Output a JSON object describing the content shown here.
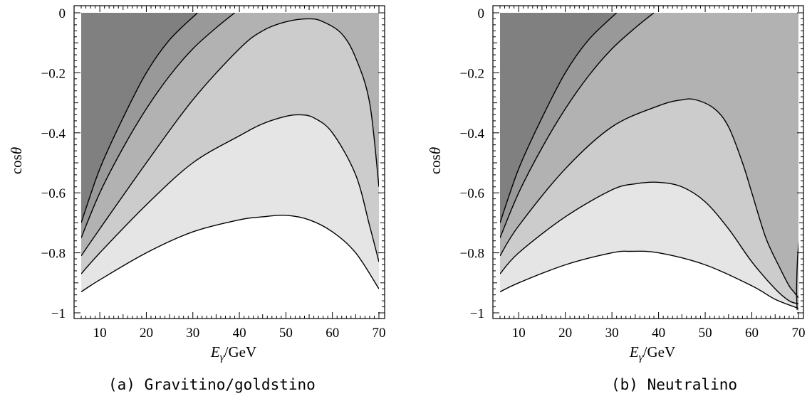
{
  "chart_data": [
    {
      "type": "contour",
      "caption": "(a) Gravitino/goldstino",
      "xlabel": "E",
      "xlabel_sub": "γ",
      "xlabel_unit": "/GeV",
      "ylabel": "cos",
      "ylabel_sym": "θ",
      "xlim": [
        5,
        71
      ],
      "ylim": [
        -1.04,
        0.02
      ],
      "x_ticks": [
        10,
        20,
        30,
        40,
        50,
        60,
        70
      ],
      "y_ticks": [
        0,
        -0.2,
        -0.4,
        -0.6,
        -0.8,
        -1
      ],
      "y_tick_labels": [
        "0",
        "−0.2",
        "−0.4",
        "−0.6",
        "−0.8",
        "−1"
      ],
      "contours": [
        {
          "x": [
            6,
            10,
            15,
            20,
            25,
            31
          ],
          "y": [
            -0.7,
            -0.52,
            -0.35,
            -0.2,
            -0.09,
            0
          ]
        },
        {
          "x": [
            6,
            10,
            15,
            20,
            25,
            30,
            35,
            39
          ],
          "y": [
            -0.75,
            -0.6,
            -0.45,
            -0.32,
            -0.21,
            -0.12,
            -0.05,
            0
          ]
        },
        {
          "x": [
            6,
            10,
            20,
            30,
            40,
            45,
            50,
            55,
            58,
            62,
            65,
            68,
            70
          ],
          "y": [
            -0.81,
            -0.72,
            -0.5,
            -0.29,
            -0.12,
            -0.06,
            -0.03,
            -0.02,
            -0.03,
            -0.07,
            -0.15,
            -0.3,
            -0.58
          ]
        },
        {
          "x": [
            6,
            10,
            20,
            30,
            40,
            45,
            50,
            53,
            56,
            60,
            65,
            68,
            70
          ],
          "y": [
            -0.87,
            -0.8,
            -0.64,
            -0.5,
            -0.41,
            -0.37,
            -0.345,
            -0.34,
            -0.35,
            -0.4,
            -0.54,
            -0.71,
            -0.83
          ]
        },
        {
          "x": [
            6,
            10,
            20,
            30,
            40,
            45,
            50,
            55,
            60,
            65,
            70
          ],
          "y": [
            -0.93,
            -0.89,
            -0.8,
            -0.73,
            -0.69,
            -0.68,
            -0.675,
            -0.69,
            -0.73,
            -0.8,
            -0.92
          ]
        }
      ],
      "levels": [
        {
          "name": "level-1",
          "color": "#808080"
        },
        {
          "name": "level-2",
          "color": "#999999"
        },
        {
          "name": "level-3",
          "color": "#b2b2b2"
        },
        {
          "name": "level-4",
          "color": "#cccccc"
        },
        {
          "name": "level-5",
          "color": "#e5e5e5"
        },
        {
          "name": "level-6",
          "color": "#ffffff"
        }
      ]
    },
    {
      "type": "contour",
      "caption": "(b) Neutralino",
      "xlabel": "E",
      "xlabel_sub": "γ",
      "xlabel_unit": "/GeV",
      "ylabel": "cos",
      "ylabel_sym": "θ",
      "xlim": [
        5,
        71
      ],
      "ylim": [
        -1.04,
        0.02
      ],
      "x_ticks": [
        10,
        20,
        30,
        40,
        50,
        60,
        70
      ],
      "y_ticks": [
        0,
        -0.2,
        -0.4,
        -0.6,
        -0.8,
        -1
      ],
      "y_tick_labels": [
        "0",
        "−0.2",
        "−0.4",
        "−0.6",
        "−0.8",
        "−1"
      ],
      "contours": [
        {
          "x": [
            6,
            10,
            15,
            20,
            25,
            31
          ],
          "y": [
            -0.7,
            -0.52,
            -0.35,
            -0.2,
            -0.09,
            0
          ]
        },
        {
          "x": [
            6,
            10,
            15,
            20,
            25,
            30,
            35,
            39
          ],
          "y": [
            -0.75,
            -0.6,
            -0.45,
            -0.32,
            -0.21,
            -0.12,
            -0.05,
            0
          ]
        },
        {
          "x": [
            6,
            10,
            20,
            30,
            40,
            45,
            48,
            52,
            55,
            58,
            60,
            63,
            66,
            68,
            69,
            70
          ],
          "y": [
            -0.81,
            -0.71,
            -0.52,
            -0.38,
            -0.31,
            -0.29,
            -0.29,
            -0.32,
            -0.38,
            -0.5,
            -0.6,
            -0.75,
            -0.85,
            -0.91,
            -0.93,
            -0.95
          ]
        },
        {
          "x": [
            6,
            10,
            20,
            30,
            35,
            40,
            45,
            50,
            55,
            60,
            65,
            68,
            70
          ],
          "y": [
            -0.87,
            -0.8,
            -0.68,
            -0.59,
            -0.57,
            -0.565,
            -0.58,
            -0.63,
            -0.72,
            -0.83,
            -0.92,
            -0.96,
            -0.97
          ]
        },
        {
          "x": [
            6,
            10,
            20,
            30,
            34,
            40,
            50,
            60,
            65,
            70
          ],
          "y": [
            -0.93,
            -0.9,
            -0.84,
            -0.8,
            -0.795,
            -0.8,
            -0.84,
            -0.91,
            -0.955,
            -0.985
          ]
        }
      ],
      "extra_contours": [
        {
          "x": [
            69.7,
            69.6,
            69.8,
            70.4,
            71
          ],
          "y": [
            -0.99,
            -0.92,
            -0.82,
            -0.68,
            -0.34
          ]
        }
      ],
      "levels": [
        {
          "name": "level-1",
          "color": "#808080"
        },
        {
          "name": "level-2",
          "color": "#999999"
        },
        {
          "name": "level-3",
          "color": "#b2b2b2"
        },
        {
          "name": "level-4",
          "color": "#cccccc"
        },
        {
          "name": "level-5",
          "color": "#e5e5e5"
        },
        {
          "name": "level-6",
          "color": "#ffffff"
        }
      ]
    }
  ]
}
